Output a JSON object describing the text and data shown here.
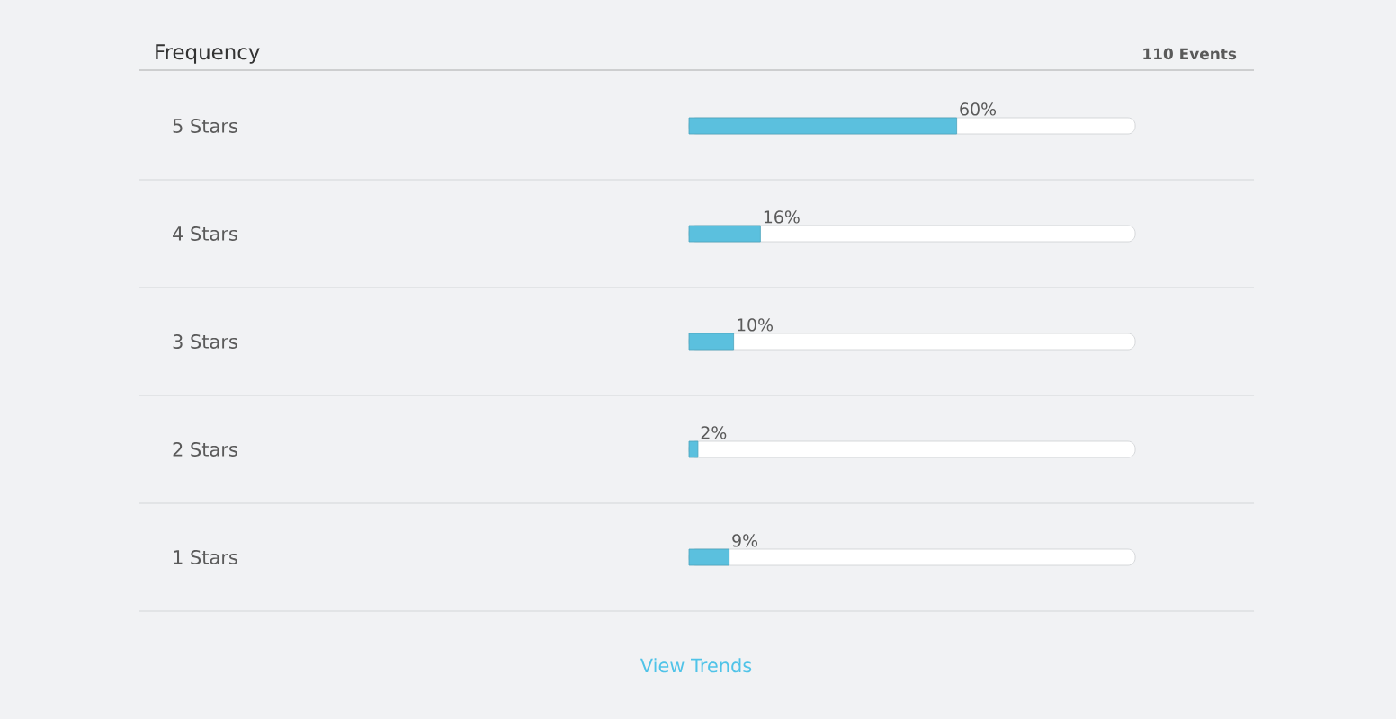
{
  "chart_data": {
    "type": "bar",
    "orientation": "horizontal",
    "title": "Frequency",
    "subtitle": "110 Events",
    "categories": [
      "5 Stars",
      "4 Stars",
      "3 Stars",
      "2 Stars",
      "1 Stars"
    ],
    "values": [
      60,
      16,
      10,
      2,
      9
    ],
    "value_labels": [
      "60%",
      "16%",
      "10%",
      "2%",
      "9%"
    ],
    "color": "#5bc0de",
    "xlim": [
      0,
      100
    ],
    "tick_labels": "y",
    "annotations": [
      "View Trends"
    ]
  }
}
